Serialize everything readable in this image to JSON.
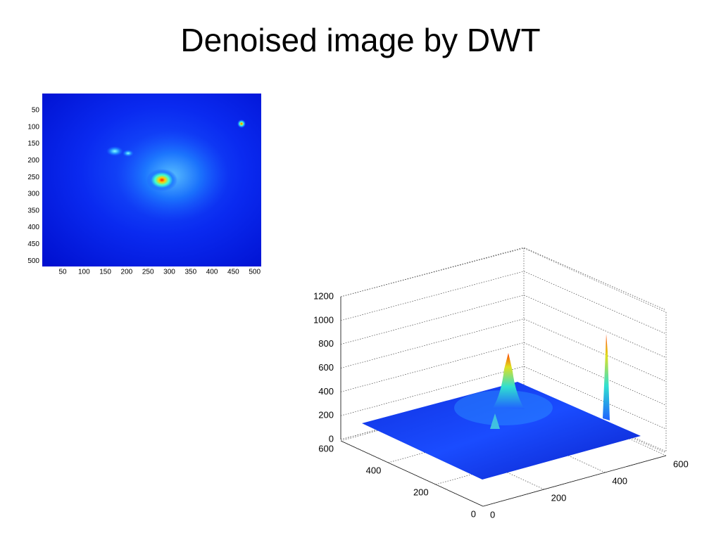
{
  "title": "Denoised image by DWT",
  "image_plot": {
    "xticks": [
      "50",
      "100",
      "150",
      "200",
      "250",
      "300",
      "350",
      "400",
      "450",
      "500"
    ],
    "yticks": [
      "50",
      "100",
      "150",
      "200",
      "250",
      "300",
      "350",
      "400",
      "450",
      "500"
    ]
  },
  "surface_plot": {
    "zticks": [
      "0",
      "200",
      "400",
      "600",
      "800",
      "1000",
      "1200"
    ],
    "yticks": [
      "600",
      "400",
      "200",
      "0"
    ],
    "xticks": [
      "0",
      "200",
      "400",
      "600"
    ]
  }
}
